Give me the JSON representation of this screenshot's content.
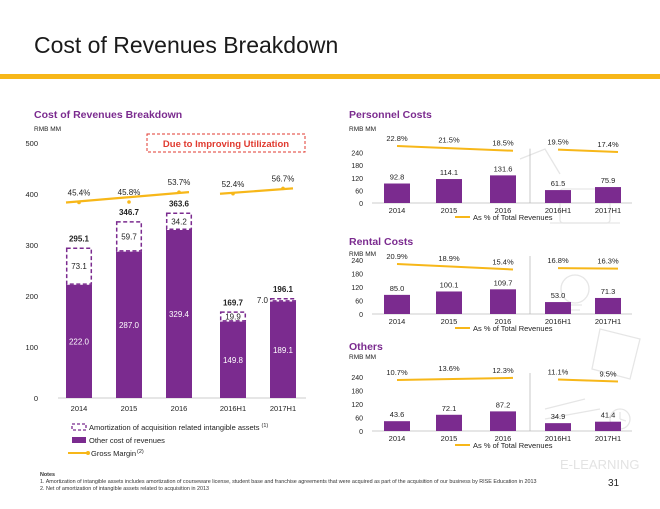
{
  "page": {
    "title": "Cost of Revenues Breakdown",
    "page_number": "31",
    "watermark": "E-LEARNING",
    "colors": {
      "accent": "#f7b719",
      "purple": "#7b2b8f",
      "line": "#f7b719",
      "callout": "#e03a2f"
    }
  },
  "notes": {
    "heading": "Notes",
    "items": [
      "1.  Amortization of intangible assets includes amortization of courseware license, student base and franchise agreements that were acquired as part of the acquisition of our business by RISE Education in 2013",
      "2.  Net of amortization of intangible assets related to acquisition in 2013"
    ]
  },
  "chart_data": [
    {
      "id": "main",
      "type": "bar",
      "title": "Cost of Revenues Breakdown",
      "ylabel": "RMB MM",
      "ylim": [
        0,
        500
      ],
      "yticks": [
        0,
        100,
        200,
        300,
        400,
        500
      ],
      "categories": [
        "2014",
        "2015",
        "2016",
        "2016H1",
        "2017H1"
      ],
      "callout": "Due to Improving Utilization",
      "series": [
        {
          "name": "Other cost of revenues",
          "values": [
            222.0,
            287.0,
            329.4,
            149.8,
            189.1
          ],
          "labels": [
            "222.0",
            "287.0",
            "329.4",
            "149.8",
            "189.1"
          ]
        },
        {
          "name": "Amortization of acquisition related intangible assets",
          "name_sup": "(1)",
          "values": [
            73.1,
            59.7,
            34.2,
            19.9,
            7.0
          ],
          "labels": [
            "73.1",
            "59.7",
            "34.2",
            "19.9",
            "7.0"
          ]
        }
      ],
      "totals": [
        "295.1",
        "346.7",
        "363.6",
        "169.7",
        "196.1"
      ],
      "margin": {
        "name": "Gross Margin",
        "name_sup": "(2)",
        "values": [
          45.4,
          45.8,
          53.7,
          52.4,
          56.7
        ],
        "labels": [
          "45.4%",
          "45.8%",
          "53.7%",
          "52.4%",
          "56.7%"
        ]
      }
    },
    {
      "id": "personnel",
      "type": "bar",
      "title": "Personnel Costs",
      "ylabel": "RMB MM",
      "ylim": [
        0,
        240
      ],
      "yticks": [
        0,
        60,
        120,
        180,
        240
      ],
      "categories": [
        "2014",
        "2015",
        "2016",
        "2016H1",
        "2017H1"
      ],
      "values": [
        92.8,
        114.1,
        131.6,
        61.5,
        75.9
      ],
      "labels": [
        "92.8",
        "114.1",
        "131.6",
        "61.5",
        "75.9"
      ],
      "pct": {
        "name": "As % of Total Revenues",
        "values": [
          22.8,
          21.5,
          18.5,
          19.5,
          17.4
        ],
        "labels": [
          "22.8%",
          "21.5%",
          "18.5%",
          "19.5%",
          "17.4%"
        ]
      }
    },
    {
      "id": "rental",
      "type": "bar",
      "title": "Rental Costs",
      "ylabel": "RMB MM",
      "ylim": [
        0,
        240
      ],
      "yticks": [
        0,
        60,
        120,
        180,
        240
      ],
      "categories": [
        "2014",
        "2015",
        "2016",
        "2016H1",
        "2017H1"
      ],
      "values": [
        85.0,
        100.1,
        109.7,
        53.0,
        71.3
      ],
      "labels": [
        "85.0",
        "100.1",
        "109.7",
        "53.0",
        "71.3"
      ],
      "pct": {
        "name": "As % of Total Revenues",
        "values": [
          20.9,
          18.9,
          15.4,
          16.8,
          16.3
        ],
        "labels": [
          "20.9%",
          "18.9%",
          "15.4%",
          "16.8%",
          "16.3%"
        ]
      }
    },
    {
      "id": "others",
      "type": "bar",
      "title": "Others",
      "ylabel": "RMB MM",
      "ylim": [
        0,
        240
      ],
      "yticks": [
        0,
        60,
        120,
        180,
        240
      ],
      "categories": [
        "2014",
        "2015",
        "2016",
        "2016H1",
        "2017H1"
      ],
      "values": [
        43.6,
        72.1,
        87.2,
        34.9,
        41.4
      ],
      "labels": [
        "43.6",
        "72.1",
        "87.2",
        "34.9",
        "41.4"
      ],
      "pct": {
        "name": "As % of Total Revenues",
        "values": [
          10.7,
          13.6,
          12.3,
          11.1,
          9.5
        ],
        "labels": [
          "10.7%",
          "13.6%",
          "12.3%",
          "11.1%",
          "9.5%"
        ]
      }
    }
  ]
}
